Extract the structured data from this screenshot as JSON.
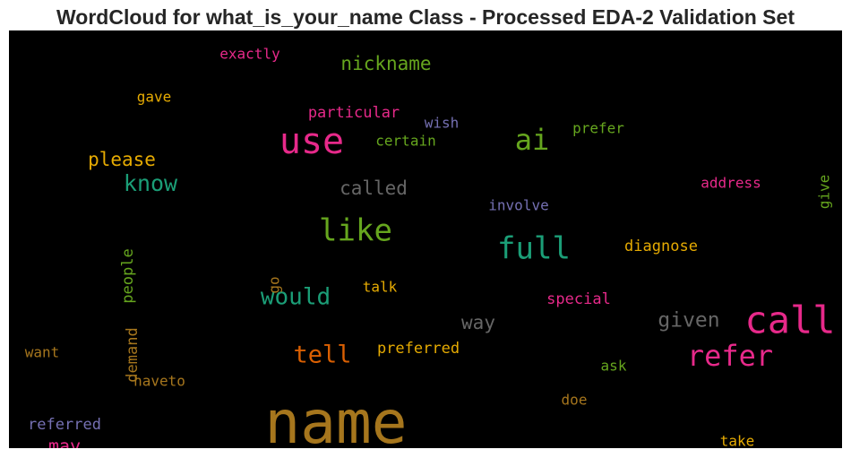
{
  "chart_data": {
    "type": "wordcloud",
    "title": "WordCloud for what_is_your_name Class - Processed EDA-2 Validation Set",
    "background": "#000000",
    "words": [
      {
        "text": "name",
        "color": "#a6761d",
        "weight": 1.0
      },
      {
        "text": "call",
        "color": "#e7298a",
        "weight": 0.62
      },
      {
        "text": "use",
        "color": "#e7298a",
        "weight": 0.6
      },
      {
        "text": "like",
        "color": "#66a61e",
        "weight": 0.52
      },
      {
        "text": "full",
        "color": "#1b9e77",
        "weight": 0.52
      },
      {
        "text": "refer",
        "color": "#e7298a",
        "weight": 0.5
      },
      {
        "text": "ai",
        "color": "#66a61e",
        "weight": 0.48
      },
      {
        "text": "tell",
        "color": "#d95f02",
        "weight": 0.42
      },
      {
        "text": "would",
        "color": "#1b9e77",
        "weight": 0.4
      },
      {
        "text": "know",
        "color": "#1b9e77",
        "weight": 0.38
      },
      {
        "text": "given",
        "color": "#666666",
        "weight": 0.34
      },
      {
        "text": "nickname",
        "color": "#66a61e",
        "weight": 0.32
      },
      {
        "text": "please",
        "color": "#e6ab02",
        "weight": 0.32
      },
      {
        "text": "called",
        "color": "#666666",
        "weight": 0.32
      },
      {
        "text": "way",
        "color": "#666666",
        "weight": 0.32
      },
      {
        "text": "may",
        "color": "#e7298a",
        "weight": 0.3
      },
      {
        "text": "particular",
        "color": "#e7298a",
        "weight": 0.26
      },
      {
        "text": "preferred",
        "color": "#e6ab02",
        "weight": 0.26
      },
      {
        "text": "diagnose",
        "color": "#e6ab02",
        "weight": 0.26
      },
      {
        "text": "special",
        "color": "#e7298a",
        "weight": 0.26
      },
      {
        "text": "referred",
        "color": "#7570b3",
        "weight": 0.26
      },
      {
        "text": "demand",
        "color": "#a6761d",
        "weight": 0.26
      },
      {
        "text": "people",
        "color": "#66a61e",
        "weight": 0.26
      },
      {
        "text": "exactly",
        "color": "#e7298a",
        "weight": 0.24
      },
      {
        "text": "gave",
        "color": "#e6ab02",
        "weight": 0.24
      },
      {
        "text": "wish",
        "color": "#7570b3",
        "weight": 0.24
      },
      {
        "text": "certain",
        "color": "#66a61e",
        "weight": 0.24
      },
      {
        "text": "prefer",
        "color": "#66a61e",
        "weight": 0.24
      },
      {
        "text": "address",
        "color": "#e7298a",
        "weight": 0.24
      },
      {
        "text": "give",
        "color": "#66a61e",
        "weight": 0.24
      },
      {
        "text": "involve",
        "color": "#7570b3",
        "weight": 0.24
      },
      {
        "text": "go",
        "color": "#a6761d",
        "weight": 0.24
      },
      {
        "text": "talk",
        "color": "#e6ab02",
        "weight": 0.24
      },
      {
        "text": "want",
        "color": "#a6761d",
        "weight": 0.24
      },
      {
        "text": "haveto",
        "color": "#a6761d",
        "weight": 0.24
      },
      {
        "text": "ask",
        "color": "#66a61e",
        "weight": 0.24
      },
      {
        "text": "doe",
        "color": "#a6761d",
        "weight": 0.24
      },
      {
        "text": "take",
        "color": "#e6ab02",
        "weight": 0.24
      }
    ]
  }
}
